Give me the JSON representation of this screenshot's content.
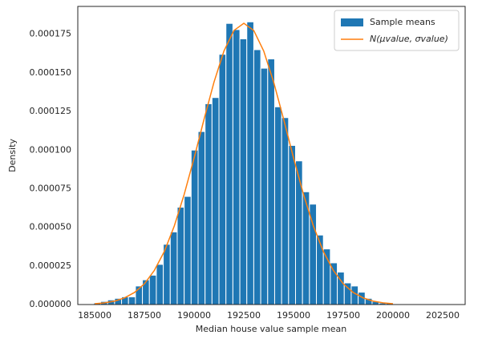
{
  "chart_data": {
    "type": "histogram",
    "xlabel": "Median house value sample mean",
    "ylabel": "Density",
    "name": "Sample means",
    "color": "#1f77b4",
    "bins": [
      184950,
      185300,
      185650,
      186000,
      186350,
      186700,
      187050,
      187400,
      187750,
      188100,
      188450,
      188800,
      189150,
      189500,
      189850,
      190200,
      190550,
      190900,
      191250,
      191600,
      191950,
      192300,
      192650,
      193000,
      193350,
      193700,
      194050,
      194400,
      194750,
      195100,
      195450,
      195800,
      196150,
      196500,
      196850,
      197200,
      197550,
      197900,
      198250,
      198600,
      198950,
      199300,
      199650,
      200000
    ],
    "values": [
      1e-06,
      2e-06,
      3e-06,
      4e-06,
      5e-06,
      5e-06,
      1.2e-05,
      1.6e-05,
      1.9e-05,
      2.6e-05,
      3.9e-05,
      4.7e-05,
      6.3e-05,
      7e-05,
      0.0001,
      0.000112,
      0.00013,
      0.000134,
      0.000162,
      0.000182,
      0.000178,
      0.000172,
      0.000183,
      0.000165,
      0.000153,
      0.000159,
      0.000128,
      0.000121,
      0.000103,
      9.3e-05,
      7.3e-05,
      6.5e-05,
      4.5e-05,
      3.6e-05,
      2.7e-05,
      2.1e-05,
      1.4e-05,
      1.2e-05,
      8e-06,
      4e-06,
      2e-06,
      1e-06,
      1e-06
    ],
    "line": {
      "name": "N(μvalue, σvalue)",
      "color": "#ff7f0e",
      "x": [
        185000,
        185500,
        186000,
        186500,
        187000,
        187500,
        188000,
        188500,
        189000,
        189500,
        190000,
        190500,
        191000,
        191500,
        192000,
        192500,
        193000,
        193500,
        194000,
        194500,
        195000,
        195500,
        196000,
        196500,
        197000,
        197500,
        198000,
        198500,
        199000,
        199500,
        200000
      ],
      "values": [
        5e-07,
        1.1e-06,
        2.2e-06,
        4.3e-06,
        7.8e-06,
        1.34e-05,
        2.21e-05,
        3.43e-05,
        5.08e-05,
        7.13e-05,
        9.49e-05,
        0.00012,
        0.000144,
        0.0001641,
        0.0001774,
        0.0001821,
        0.0001774,
        0.0001641,
        0.000144,
        0.00012,
        9.49e-05,
        7.13e-05,
        5.08e-05,
        3.43e-05,
        2.21e-05,
        1.34e-05,
        7.8e-06,
        4.3e-06,
        2.2e-06,
        1.1e-06,
        5e-07
      ]
    },
    "xlim": [
      184150,
      203630
    ],
    "ylim": [
      0,
      0.000193
    ],
    "xticks": [
      185000,
      187500,
      190000,
      192500,
      195000,
      197500,
      200000,
      202500
    ],
    "yticks": [
      {
        "value": 0,
        "label": "0.000000"
      },
      {
        "value": 2.5e-05,
        "label": "0.000025"
      },
      {
        "value": 5e-05,
        "label": "0.000050"
      },
      {
        "value": 7.5e-05,
        "label": "0.000075"
      },
      {
        "value": 0.0001,
        "label": "0.000100"
      },
      {
        "value": 0.000125,
        "label": "0.000125"
      },
      {
        "value": 0.00015,
        "label": "0.000150"
      },
      {
        "value": 0.000175,
        "label": "0.000175"
      }
    ],
    "legend": "upper right",
    "grid": false
  }
}
